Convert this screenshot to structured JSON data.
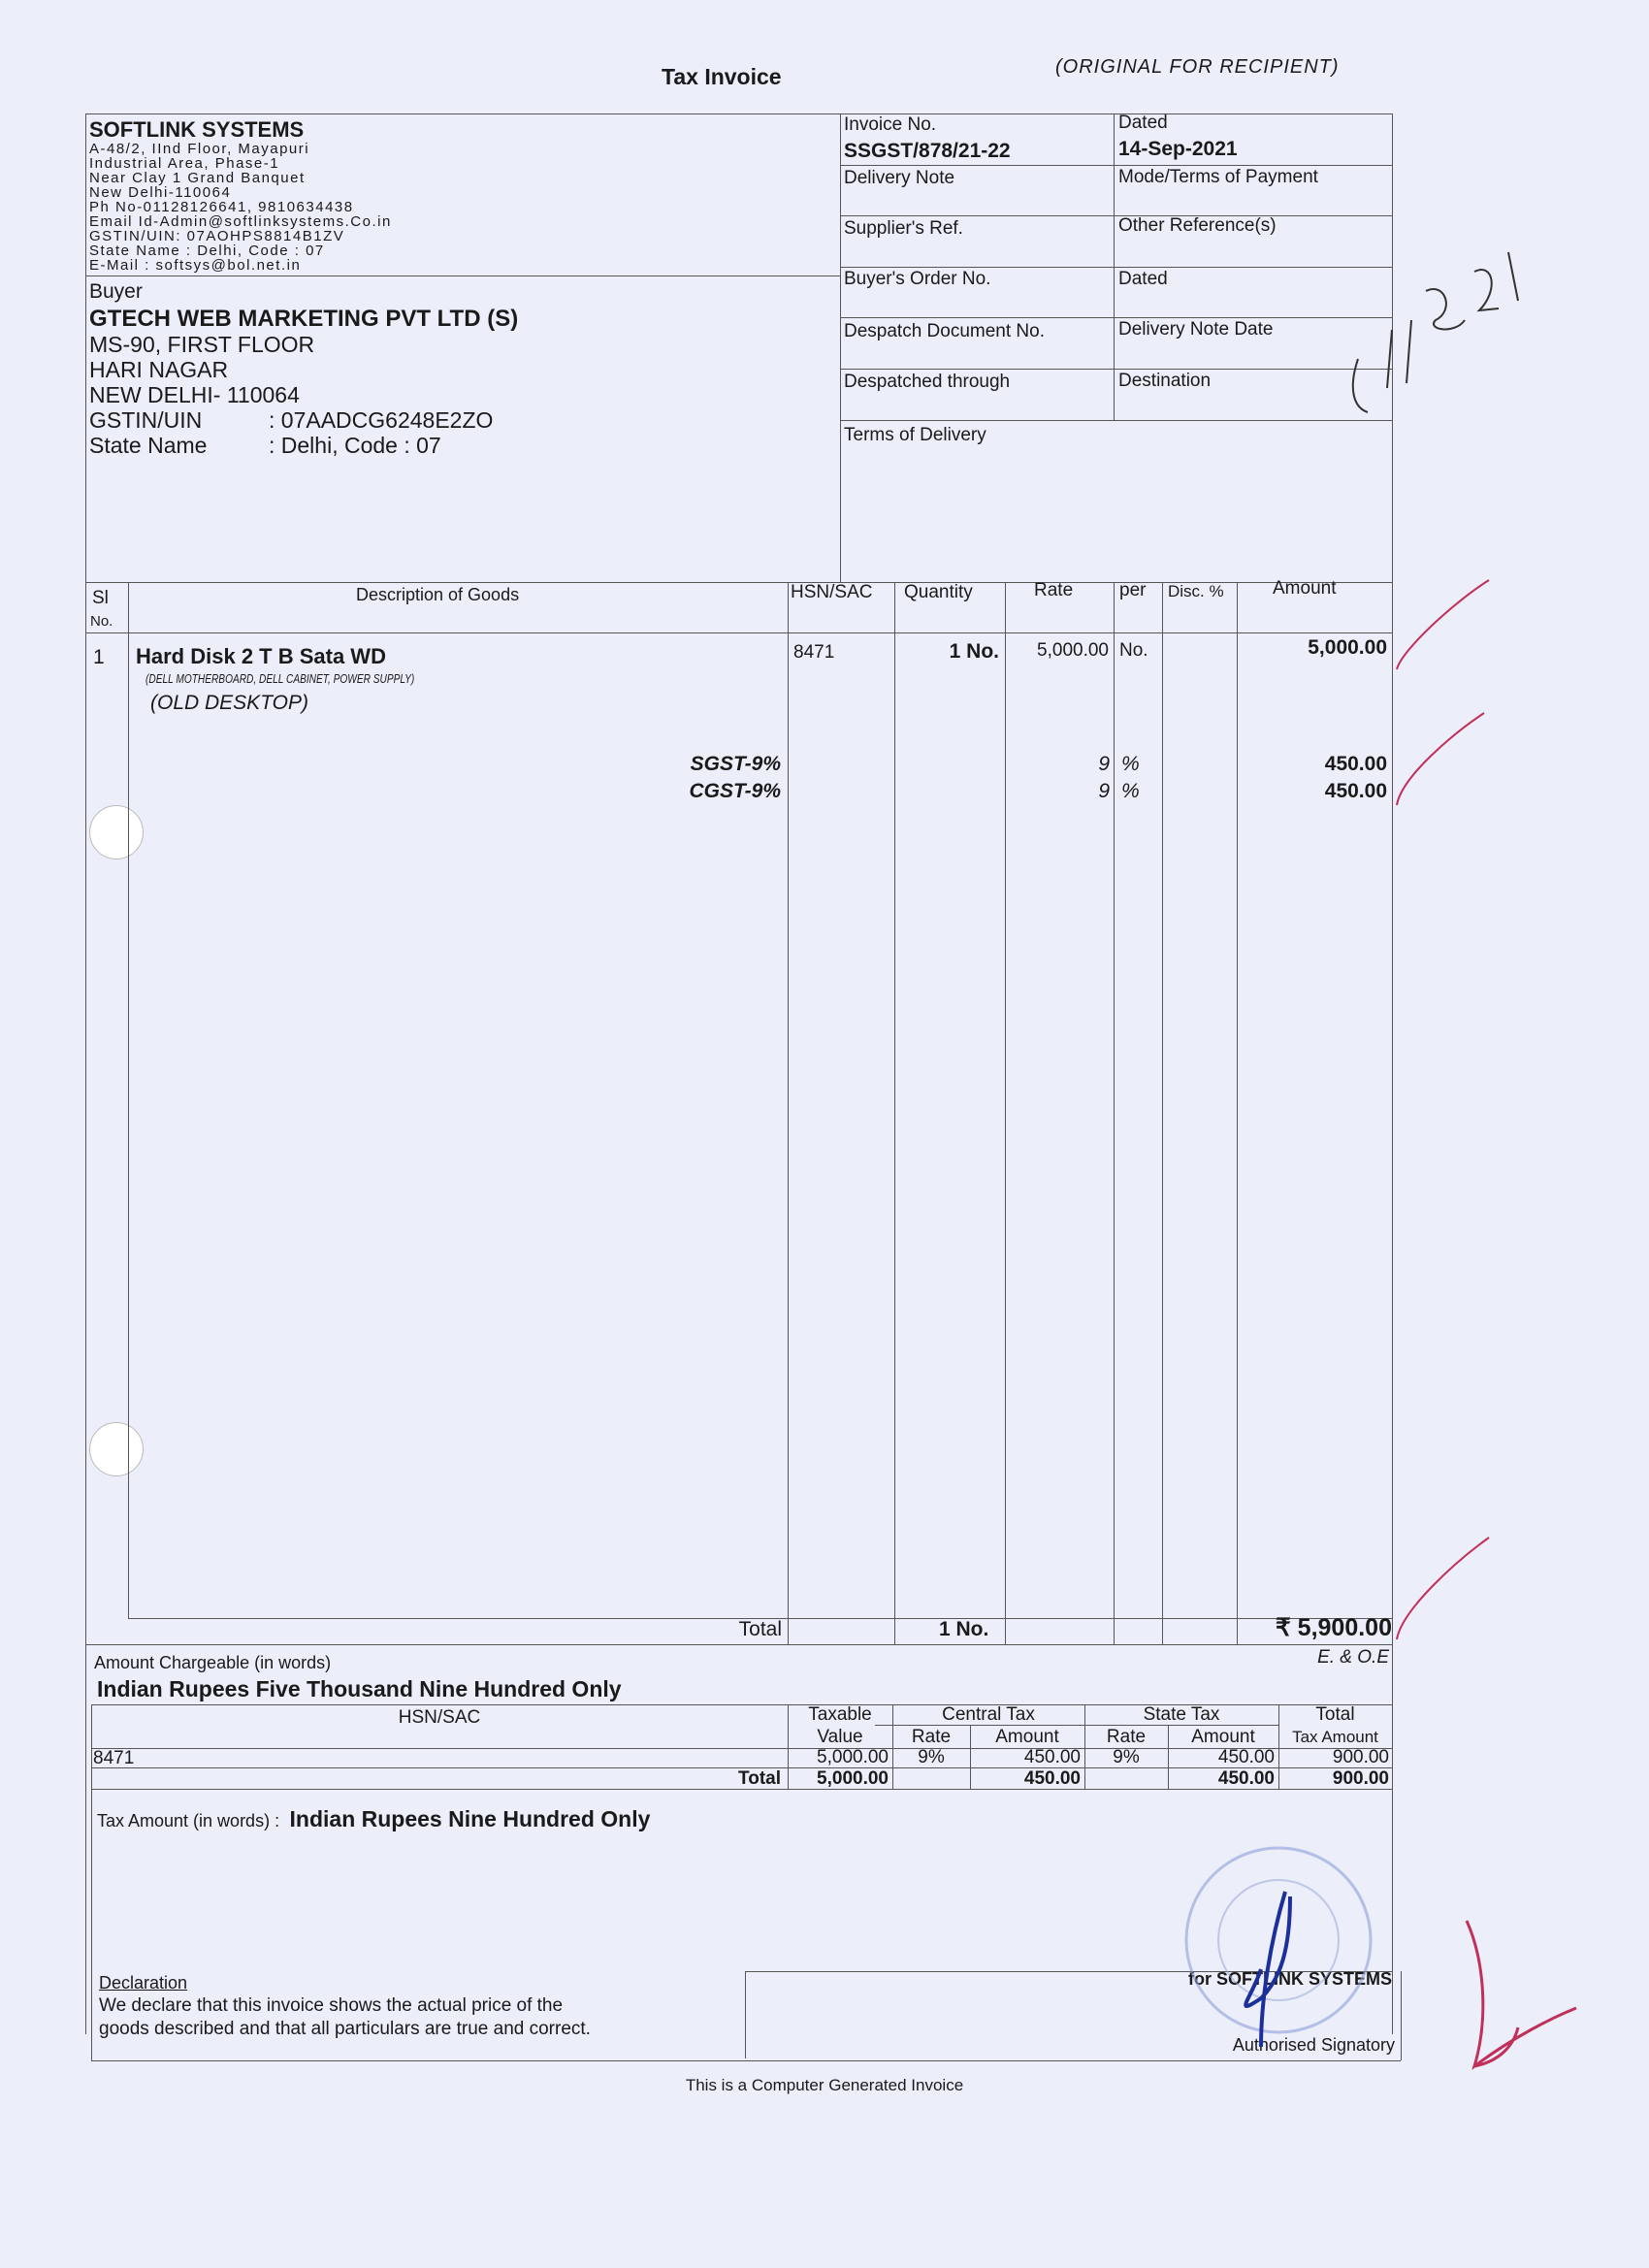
{
  "header": {
    "title": "Tax Invoice",
    "copy_label": "(ORIGINAL FOR RECIPIENT)"
  },
  "seller": {
    "name": "SOFTLINK SYSTEMS",
    "lines": [
      "A-48/2, IInd Floor, Mayapuri",
      "Industrial Area, Phase-1",
      "Near Clay 1 Grand Banquet",
      "New Delhi-110064",
      "Ph No-01128126641, 9810634438",
      "Email Id-Admin@softlinksystems.Co.in",
      "GSTIN/UIN: 07AOHPS8814B1ZV",
      "State Name :  Delhi, Code : 07",
      "E-Mail : softsys@bol.net.in"
    ]
  },
  "buyer": {
    "label": "Buyer",
    "name": "GTECH WEB MARKETING PVT LTD (S)",
    "lines": [
      "MS-90, FIRST FLOOR",
      "HARI NAGAR",
      "NEW DELHI- 110064"
    ],
    "gstin_label": "GSTIN/UIN",
    "gstin": ": 07AADCG6248E2ZO",
    "state_label": "State Name",
    "state": ": Delhi, Code : 07"
  },
  "meta": {
    "invoice_no_label": "Invoice No.",
    "invoice_no": "SSGST/878/21-22",
    "dated_label": "Dated",
    "dated": "14-Sep-2021",
    "delivery_note": "Delivery Note",
    "mode_terms": "Mode/Terms of Payment",
    "supplier_ref": "Supplier's Ref.",
    "other_ref": "Other Reference(s)",
    "buyer_order": "Buyer's Order No.",
    "dated2": "Dated",
    "despatch_doc": "Despatch Document No.",
    "delivery_note_date": "Delivery Note Date",
    "despatched_through": "Despatched through",
    "destination": "Destination",
    "terms_delivery": "Terms of Delivery"
  },
  "items_table": {
    "headers": {
      "sl": "Sl",
      "no": "No.",
      "desc": "Description of Goods",
      "hsn": "HSN/SAC",
      "qty": "Quantity",
      "rate": "Rate",
      "per": "per",
      "disc": "Disc. %",
      "amount": "Amount"
    },
    "items": [
      {
        "sl": "1",
        "name": "Hard Disk 2 T B  Sata WD",
        "sub1": "(DELL MOTHERBOARD, DELL CABINET, POWER SUPPLY)",
        "sub2": "(OLD DESKTOP)",
        "hsn": "8471",
        "qty": "1 No.",
        "rate": "5,000.00",
        "per": "No.",
        "amount": "5,000.00"
      }
    ],
    "taxes": [
      {
        "name": "SGST-9%",
        "rate": "9",
        "unit": "%",
        "amount": "450.00"
      },
      {
        "name": "CGST-9%",
        "rate": "9",
        "unit": "%",
        "amount": "450.00"
      }
    ],
    "total_label": "Total",
    "total_qty": "1 No.",
    "total_amount": "₹ 5,900.00",
    "eoe": "E. & O.E"
  },
  "amount_words": {
    "label": "Amount Chargeable (in words)",
    "value": "Indian Rupees Five Thousand Nine Hundred Only"
  },
  "tax_summary": {
    "headers": {
      "hsn": "HSN/SAC",
      "taxable1": "Taxable",
      "taxable2": "Value",
      "central": "Central Tax",
      "state": "State Tax",
      "total1": "Total",
      "total2": "Tax Amount",
      "rate": "Rate",
      "amount": "Amount"
    },
    "row": {
      "hsn": "8471",
      "taxable": "5,000.00",
      "c_rate": "9%",
      "c_amt": "450.00",
      "s_rate": "9%",
      "s_amt": "450.00",
      "total": "900.00"
    },
    "total": {
      "label": "Total",
      "taxable": "5,000.00",
      "c_amt": "450.00",
      "s_amt": "450.00",
      "total": "900.00"
    }
  },
  "tax_words": {
    "label": "Tax Amount (in words)  :",
    "value": "Indian Rupees Nine Hundred Only"
  },
  "declaration": {
    "title": "Declaration",
    "text1": "We declare that this invoice shows the actual price of the",
    "text2": "goods described and that all particulars are true and correct."
  },
  "signatory": {
    "for": "for SOFTLINK SYSTEMS",
    "label": "Authorised Signatory"
  },
  "footer": "This is a Computer Generated Invoice",
  "colors": {
    "tick_marks": "#c0305a",
    "signature": "#1c2f9a",
    "stamp": "#8fa0d8"
  }
}
